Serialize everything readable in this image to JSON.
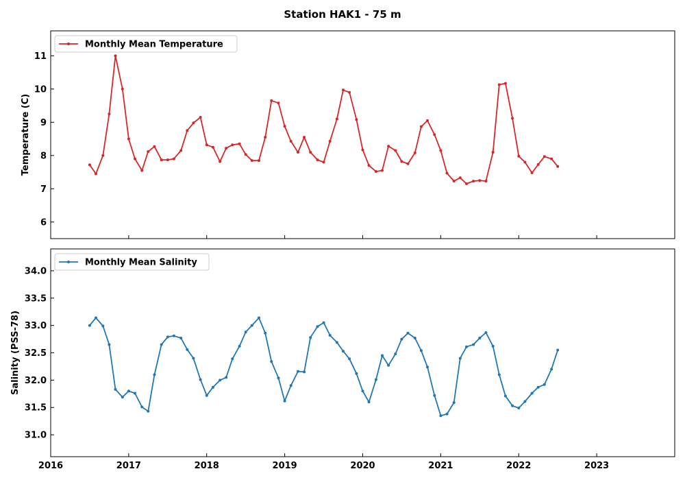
{
  "figure": {
    "title": "Station HAK1 - 75 m"
  },
  "chart_data": [
    {
      "type": "line",
      "ylabel": "Temperature (C)",
      "xlabel": "",
      "xlim": [
        2016.0,
        2024.0
      ],
      "ylim": [
        5.5,
        11.75
      ],
      "xticks": [
        2016,
        2017,
        2018,
        2019,
        2020,
        2021,
        2022,
        2023
      ],
      "xtick_labels": [
        "",
        "",
        "",
        "",
        "",
        "",
        "",
        ""
      ],
      "yticks": [
        6,
        7,
        8,
        9,
        10,
        11
      ],
      "ytick_labels": [
        "6",
        "7",
        "8",
        "9",
        "10",
        "11"
      ],
      "grid": false,
      "legend_position": "upper-left",
      "series": [
        {
          "name": "Monthly Mean Temperature",
          "color": "#d62728",
          "x": [
            2016.5,
            2016.58,
            2016.67,
            2016.75,
            2016.83,
            2016.92,
            2017.0,
            2017.08,
            2017.17,
            2017.25,
            2017.33,
            2017.42,
            2017.5,
            2017.58,
            2017.67,
            2017.75,
            2017.83,
            2017.92,
            2018.0,
            2018.08,
            2018.17,
            2018.25,
            2018.33,
            2018.42,
            2018.5,
            2018.58,
            2018.67,
            2018.75,
            2018.83,
            2018.92,
            2019.0,
            2019.08,
            2019.17,
            2019.25,
            2019.33,
            2019.42,
            2019.5,
            2019.58,
            2019.67,
            2019.75,
            2019.83,
            2019.92,
            2020.0,
            2020.08,
            2020.17,
            2020.25,
            2020.33,
            2020.42,
            2020.5,
            2020.58,
            2020.67,
            2020.75,
            2020.83,
            2020.92,
            2021.0,
            2021.08,
            2021.17,
            2021.25,
            2021.33,
            2021.42,
            2021.5,
            2021.58,
            2021.67,
            2021.75,
            2021.83,
            2021.92,
            2022.0,
            2022.08,
            2022.17,
            2022.25,
            2022.33,
            2022.42,
            2022.5
          ],
          "values": [
            7.72,
            7.45,
            8.0,
            9.25,
            11.0,
            10.0,
            8.5,
            7.9,
            7.55,
            8.12,
            8.27,
            7.87,
            7.87,
            7.9,
            8.15,
            8.75,
            8.98,
            9.15,
            8.32,
            8.25,
            7.82,
            8.22,
            8.32,
            8.35,
            8.03,
            7.85,
            7.85,
            8.55,
            9.65,
            9.58,
            8.88,
            8.43,
            8.1,
            8.55,
            8.1,
            7.87,
            7.8,
            8.43,
            9.1,
            9.97,
            9.9,
            9.08,
            8.17,
            7.7,
            7.52,
            7.55,
            8.28,
            8.15,
            7.82,
            7.75,
            8.08,
            8.87,
            9.05,
            8.63,
            8.15,
            7.47,
            7.23,
            7.33,
            7.15,
            7.23,
            7.25,
            7.23,
            8.1,
            10.13,
            10.17,
            9.12,
            7.98,
            7.8,
            7.48,
            7.73,
            7.97,
            7.9,
            7.67
          ]
        }
      ]
    },
    {
      "type": "line",
      "ylabel": "Salinity (PSS-78)",
      "xlabel": "",
      "xlim": [
        2016.0,
        2024.0
      ],
      "ylim": [
        30.6,
        34.4
      ],
      "xticks": [
        2016,
        2017,
        2018,
        2019,
        2020,
        2021,
        2022,
        2023
      ],
      "xtick_labels": [
        "2016",
        "2017",
        "2018",
        "2019",
        "2020",
        "2021",
        "2022",
        "2023"
      ],
      "yticks": [
        31.0,
        31.5,
        32.0,
        32.5,
        33.0,
        33.5,
        34.0
      ],
      "ytick_labels": [
        "31.0",
        "31.5",
        "32.0",
        "32.5",
        "33.0",
        "33.5",
        "34.0"
      ],
      "grid": false,
      "legend_position": "upper-left",
      "series": [
        {
          "name": "Monthly Mean Salinity",
          "color": "#1f77b4",
          "x": [
            2016.5,
            2016.58,
            2016.67,
            2016.75,
            2016.83,
            2016.92,
            2017.0,
            2017.08,
            2017.17,
            2017.25,
            2017.33,
            2017.42,
            2017.5,
            2017.58,
            2017.67,
            2017.75,
            2017.83,
            2017.92,
            2018.0,
            2018.08,
            2018.17,
            2018.25,
            2018.33,
            2018.42,
            2018.5,
            2018.58,
            2018.67,
            2018.75,
            2018.83,
            2018.92,
            2019.0,
            2019.08,
            2019.17,
            2019.25,
            2019.33,
            2019.42,
            2019.5,
            2019.58,
            2019.67,
            2019.75,
            2019.83,
            2019.92,
            2020.0,
            2020.08,
            2020.17,
            2020.25,
            2020.33,
            2020.42,
            2020.5,
            2020.58,
            2020.67,
            2020.75,
            2020.83,
            2020.92,
            2021.0,
            2021.08,
            2021.17,
            2021.25,
            2021.33,
            2021.42,
            2021.5,
            2021.58,
            2021.67,
            2021.75,
            2021.83,
            2021.92,
            2022.0,
            2022.08,
            2022.17,
            2022.25,
            2022.33,
            2022.42,
            2022.5
          ],
          "values": [
            33.0,
            33.14,
            32.99,
            32.65,
            31.83,
            31.69,
            31.8,
            31.76,
            31.51,
            31.43,
            32.1,
            32.65,
            32.79,
            32.81,
            32.77,
            32.56,
            32.4,
            32.01,
            31.72,
            31.87,
            32.0,
            32.05,
            32.39,
            32.62,
            32.88,
            33.0,
            33.14,
            32.86,
            32.34,
            32.04,
            31.62,
            31.9,
            32.16,
            32.15,
            32.78,
            32.98,
            33.05,
            32.82,
            32.69,
            32.53,
            32.39,
            32.12,
            31.8,
            31.6,
            32.01,
            32.45,
            32.27,
            32.48,
            32.75,
            32.86,
            32.77,
            32.54,
            32.24,
            31.72,
            31.35,
            31.38,
            31.59,
            32.4,
            32.61,
            32.65,
            32.77,
            32.87,
            32.62,
            32.1,
            31.71,
            31.53,
            31.49,
            31.61,
            31.76,
            31.87,
            31.92,
            32.2,
            32.55
          ]
        }
      ]
    }
  ]
}
